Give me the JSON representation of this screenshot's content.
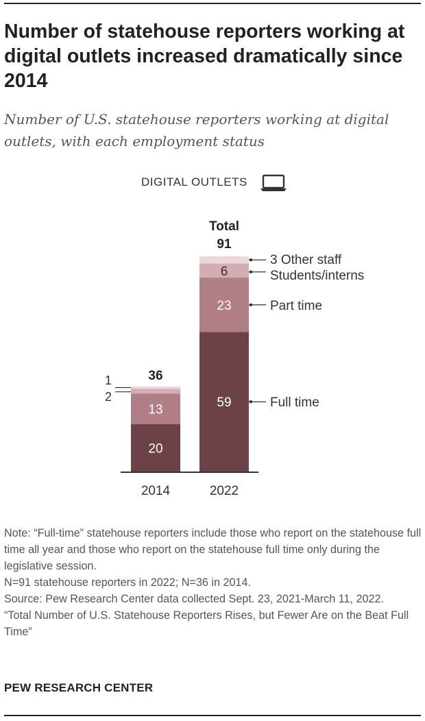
{
  "title": "Number of statehouse reporters working at digital outlets increased dramatically since 2014",
  "subtitle": "Number of U.S. statehouse reporters working at digital outlets, with each employment status",
  "panel_label": "DIGITAL OUTLETS",
  "panel_icon": "laptop-icon",
  "colors": {
    "full_time": "#6d4148",
    "part_time": "#b07e86",
    "students_interns": "#d2aeb3",
    "other_staff": "#ead8db",
    "axis": "#333333"
  },
  "chart_data": {
    "type": "bar",
    "stacked": true,
    "categories": [
      "2014",
      "2022"
    ],
    "series": [
      {
        "name": "Full time",
        "values": [
          20,
          59
        ]
      },
      {
        "name": "Part time",
        "values": [
          13,
          23
        ]
      },
      {
        "name": "Students/interns",
        "values": [
          2,
          6
        ]
      },
      {
        "name": "Other staff",
        "values": [
          1,
          3
        ]
      }
    ],
    "totals": [
      36,
      91
    ],
    "total_label": "Total",
    "segment_labels": [
      [
        "20",
        "13",
        "2",
        "1"
      ],
      [
        "59",
        "23",
        "6",
        "3"
      ]
    ],
    "legend_labels": [
      "Full time",
      "Part time",
      "Students/interns",
      "3 Other staff"
    ],
    "ylim": [
      0,
      91
    ],
    "xlabel": "",
    "ylabel": ""
  },
  "notes": {
    "note": "Note: “Full-time” statehouse reporters include those who report on the statehouse full time all year and those who report on the statehouse full time only during the legislative session.",
    "sample": "N=91 statehouse reporters in 2022; N=36 in 2014.",
    "source": "Source: Pew Research Center data collected Sept. 23, 2021-March 11, 2022.",
    "report": "“Total Number of U.S. Statehouse Reporters Rises, but Fewer Are on the Beat Full Time”"
  },
  "brand": "PEW RESEARCH CENTER"
}
